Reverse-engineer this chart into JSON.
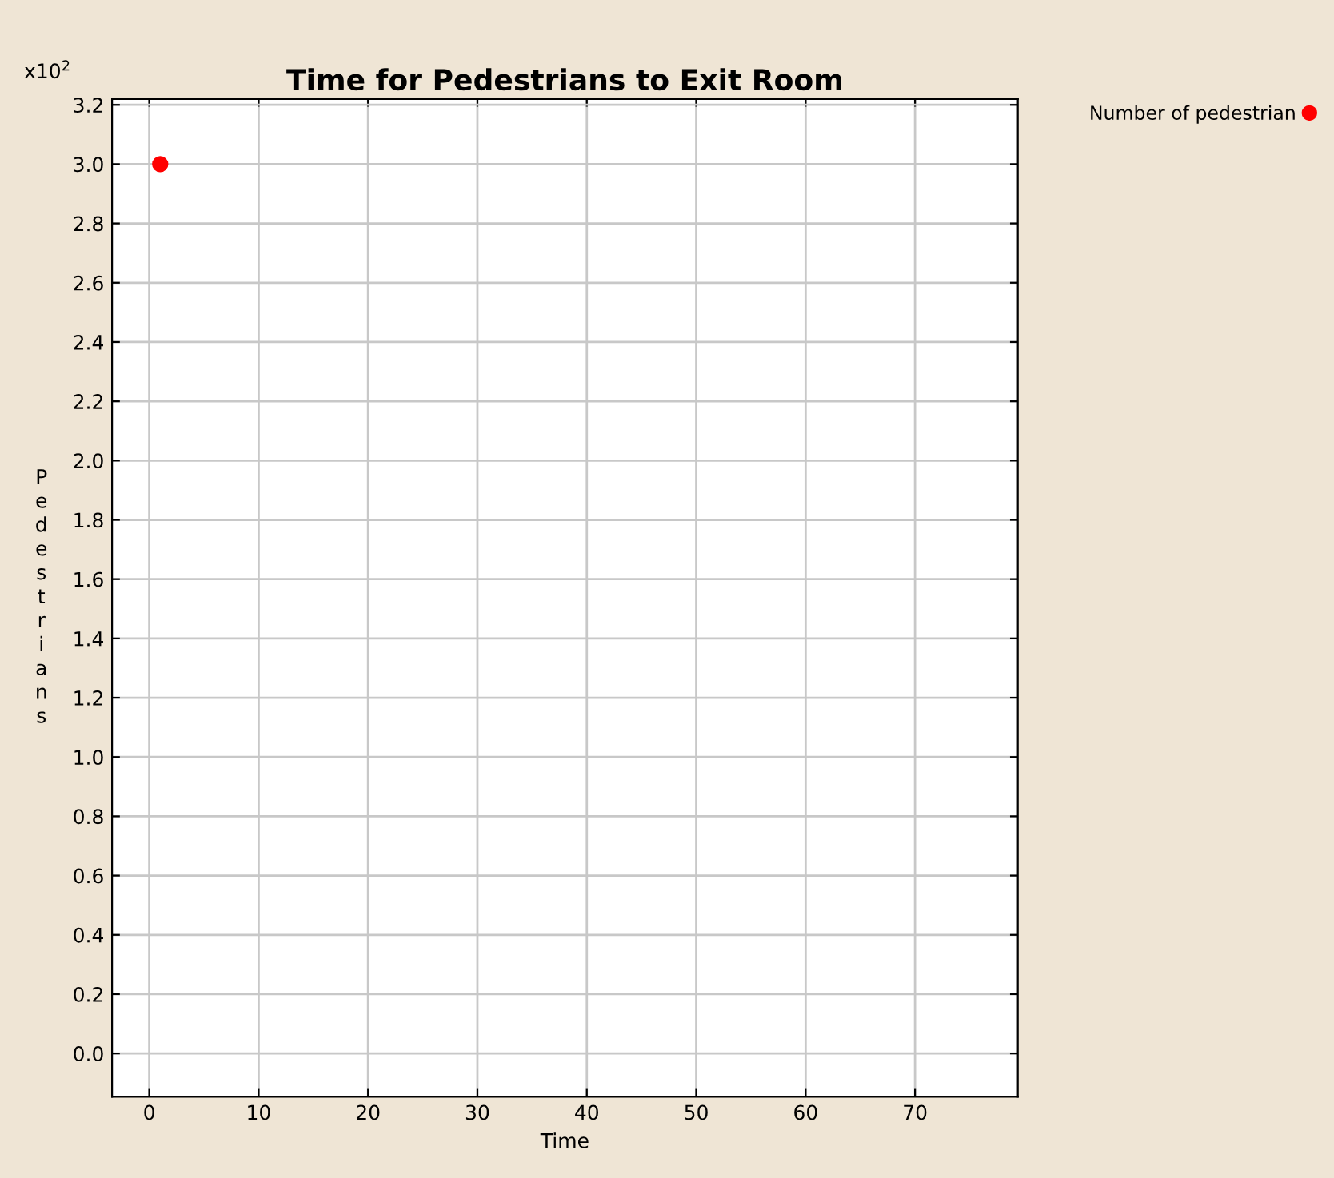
{
  "chart_data": {
    "type": "scatter",
    "title": "Time for Pedestrians to Exit Room",
    "xlabel": "Time",
    "ylabel": "Pedestrians",
    "annotations": [
      "x10$^{2}$"
    ],
    "series": [
      {
        "name": "Number of pedestrian",
        "color": "#ff0000",
        "x": [
          1
        ],
        "values": [
          3.0
        ]
      }
    ],
    "xlim": [
      -3.4,
      79.4
    ],
    "xticks": [
      0,
      10,
      20,
      30,
      40,
      50,
      60,
      70
    ],
    "ylim": [
      -0.146,
      3.22
    ],
    "yticks": [
      {
        "value": 0,
        "label": "0.0"
      },
      {
        "value": 0.2,
        "label": "0.2"
      },
      {
        "value": 0.4,
        "label": "0.4"
      },
      {
        "value": 0.6,
        "label": "0.6"
      },
      {
        "value": 0.8,
        "label": "0.8"
      },
      {
        "value": 1,
        "label": "1.0"
      },
      {
        "value": 1.2,
        "label": "1.2"
      },
      {
        "value": 1.4,
        "label": "1.4"
      },
      {
        "value": 1.6,
        "label": "1.6"
      },
      {
        "value": 1.8,
        "label": "1.8"
      },
      {
        "value": 2,
        "label": "2.0"
      },
      {
        "value": 2.2,
        "label": "2.2"
      },
      {
        "value": 2.4,
        "label": "2.4"
      },
      {
        "value": 2.6,
        "label": "2.6"
      },
      {
        "value": 2.8,
        "label": "2.8"
      },
      {
        "value": 3,
        "label": "3.0"
      },
      {
        "value": 3.2,
        "label": "3.2"
      }
    ],
    "grid": true,
    "legend": "top right",
    "marker": "circle"
  }
}
